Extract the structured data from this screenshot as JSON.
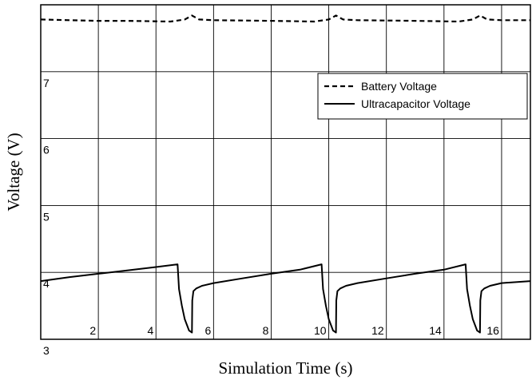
{
  "chart_data": {
    "type": "line",
    "xlabel": "Simulation Time (s)",
    "ylabel": "Voltage (V)",
    "xlim": [
      0,
      17
    ],
    "ylim": [
      3,
      8
    ],
    "x_ticks": [
      2,
      4,
      6,
      8,
      10,
      12,
      14,
      16
    ],
    "y_ticks": [
      3,
      4,
      5,
      6,
      7
    ],
    "grid": true,
    "legend_position": "upper-right",
    "series": [
      {
        "name": "Battery Voltage",
        "style": "dashed",
        "color": "#000000",
        "points": [
          [
            0,
            7.78
          ],
          [
            1,
            7.77
          ],
          [
            2,
            7.76
          ],
          [
            3,
            7.76
          ],
          [
            4.5,
            7.75
          ],
          [
            5,
            7.78
          ],
          [
            5.25,
            7.84
          ],
          [
            5.5,
            7.78
          ],
          [
            6,
            7.77
          ],
          [
            8,
            7.76
          ],
          [
            9.5,
            7.75
          ],
          [
            10,
            7.78
          ],
          [
            10.25,
            7.84
          ],
          [
            10.5,
            7.78
          ],
          [
            11,
            7.77
          ],
          [
            13,
            7.76
          ],
          [
            14.5,
            7.75
          ],
          [
            15,
            7.78
          ],
          [
            15.25,
            7.84
          ],
          [
            15.5,
            7.78
          ],
          [
            16,
            7.77
          ],
          [
            17,
            7.77
          ]
        ]
      },
      {
        "name": "Ultracapacitor Voltage",
        "style": "solid",
        "color": "#000000",
        "points": [
          [
            0,
            3.87
          ],
          [
            1,
            3.93
          ],
          [
            2,
            3.98
          ],
          [
            3,
            4.03
          ],
          [
            4,
            4.08
          ],
          [
            4.75,
            4.12
          ],
          [
            4.8,
            3.75
          ],
          [
            4.9,
            3.5
          ],
          [
            5.0,
            3.3
          ],
          [
            5.15,
            3.13
          ],
          [
            5.25,
            3.1
          ],
          [
            5.26,
            3.58
          ],
          [
            5.3,
            3.72
          ],
          [
            5.4,
            3.76
          ],
          [
            5.6,
            3.8
          ],
          [
            6,
            3.84
          ],
          [
            7,
            3.91
          ],
          [
            8,
            3.98
          ],
          [
            9,
            4.04
          ],
          [
            9.75,
            4.12
          ],
          [
            9.8,
            3.75
          ],
          [
            9.9,
            3.5
          ],
          [
            10.0,
            3.3
          ],
          [
            10.15,
            3.13
          ],
          [
            10.25,
            3.1
          ],
          [
            10.26,
            3.58
          ],
          [
            10.3,
            3.72
          ],
          [
            10.4,
            3.76
          ],
          [
            10.6,
            3.8
          ],
          [
            11,
            3.84
          ],
          [
            12,
            3.91
          ],
          [
            13,
            3.98
          ],
          [
            14,
            4.04
          ],
          [
            14.75,
            4.12
          ],
          [
            14.8,
            3.75
          ],
          [
            14.9,
            3.5
          ],
          [
            15.0,
            3.3
          ],
          [
            15.15,
            3.13
          ],
          [
            15.25,
            3.1
          ],
          [
            15.26,
            3.58
          ],
          [
            15.3,
            3.72
          ],
          [
            15.4,
            3.76
          ],
          [
            15.6,
            3.8
          ],
          [
            16,
            3.84
          ],
          [
            17,
            3.87
          ]
        ]
      }
    ]
  }
}
